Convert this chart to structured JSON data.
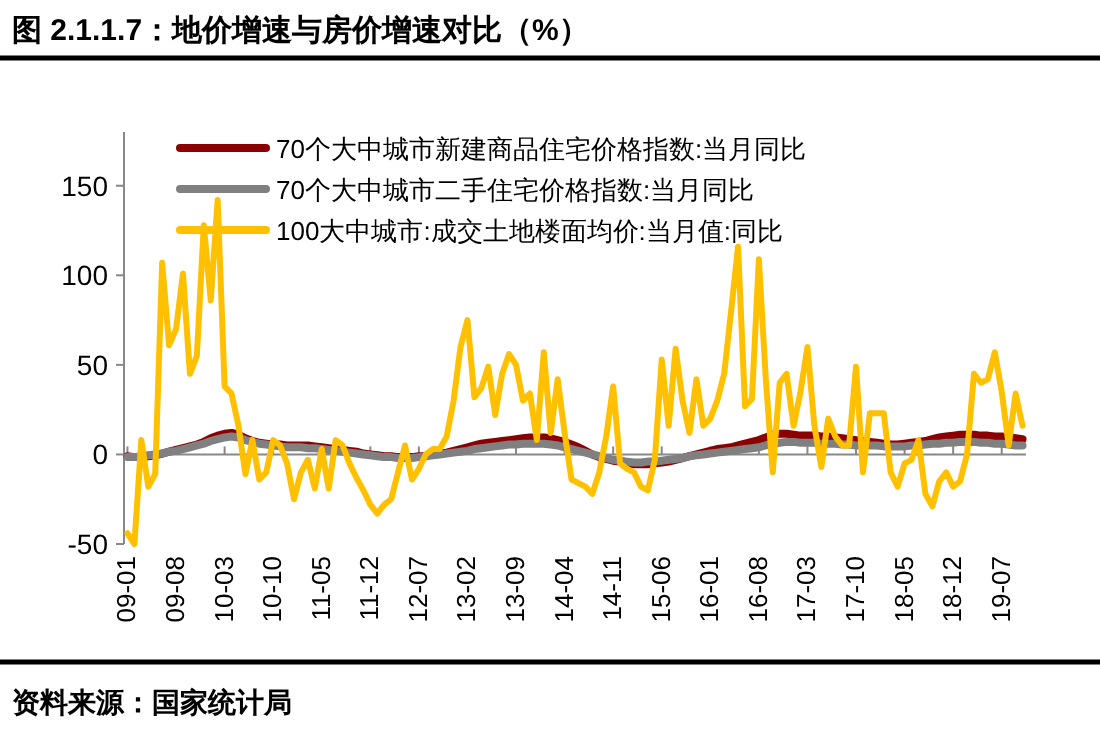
{
  "chart_data": {
    "type": "line",
    "title": "图 2.1.1.7：地价增速与房价增速对比（%）",
    "annotations": [
      "资料来源：国家统计局"
    ],
    "categories": [
      "09-01",
      null,
      null,
      null,
      null,
      null,
      null,
      "09-08",
      null,
      null,
      null,
      null,
      null,
      null,
      "10-03",
      null,
      null,
      null,
      null,
      null,
      null,
      "10-10",
      null,
      null,
      null,
      null,
      null,
      null,
      "11-05",
      null,
      null,
      null,
      null,
      null,
      null,
      "11-12",
      null,
      null,
      null,
      null,
      null,
      null,
      "12-07",
      null,
      null,
      null,
      null,
      null,
      null,
      "13-02",
      null,
      null,
      null,
      null,
      null,
      null,
      "13-09",
      null,
      null,
      null,
      null,
      null,
      null,
      "14-04",
      null,
      null,
      null,
      null,
      null,
      null,
      "14-11",
      null,
      null,
      null,
      null,
      null,
      null,
      "15-06",
      null,
      null,
      null,
      null,
      null,
      null,
      "16-01",
      null,
      null,
      null,
      null,
      null,
      null,
      "16-08",
      null,
      null,
      null,
      null,
      null,
      null,
      "17-03",
      null,
      null,
      null,
      null,
      null,
      null,
      "17-10",
      null,
      null,
      null,
      null,
      null,
      null,
      "18-05",
      null,
      null,
      null,
      null,
      null,
      null,
      "18-12",
      null,
      null,
      null,
      null,
      null,
      null,
      "19-07",
      null,
      null,
      null
    ],
    "series": [
      {
        "name": "70个大中城市新建商品住宅价格指数:当月同比",
        "color": "#8b0000",
        "values": [
          -1,
          -1.5,
          -1.5,
          -1,
          -0.5,
          0.5,
          1.5,
          2.5,
          3.5,
          4.5,
          5.5,
          7,
          9,
          10.5,
          11.5,
          12,
          11,
          9,
          7.5,
          6.5,
          6,
          5.5,
          5.5,
          5,
          5,
          5,
          5,
          4.5,
          4,
          3.5,
          3,
          2.5,
          2,
          1.5,
          0.5,
          0,
          -0.5,
          -1,
          -1,
          -1.5,
          -1.5,
          -1.5,
          -1,
          -1,
          0,
          0.5,
          1,
          2,
          3,
          4,
          5,
          6,
          6.5,
          7,
          7.5,
          8,
          8.5,
          9,
          9.5,
          9.5,
          9.5,
          9,
          8,
          7,
          5.5,
          4,
          2,
          0,
          -1.5,
          -2.5,
          -3.5,
          -4,
          -5,
          -5.5,
          -5.5,
          -5.5,
          -5,
          -4.5,
          -4,
          -3,
          -2,
          -1,
          0,
          1,
          2,
          3,
          3.5,
          4,
          5,
          6,
          7,
          8,
          9.5,
          11,
          11.5,
          11.5,
          11,
          10.5,
          10.5,
          10.5,
          10,
          10,
          9.5,
          9,
          8.5,
          8,
          7.5,
          7,
          6.5,
          6,
          5.5,
          5.5,
          6,
          6.5,
          7,
          7.5,
          8.5,
          9.5,
          10,
          10.5,
          11,
          11,
          11,
          10.5,
          10.5,
          10,
          10,
          9.5,
          9,
          8.5
        ]
      },
      {
        "name": "70个大中城市二手住宅价格指数:当月同比",
        "color": "#808080",
        "values": [
          -1.5,
          -1.5,
          -1,
          -0.5,
          0,
          0.5,
          1.5,
          2,
          3,
          4,
          5,
          6,
          7.5,
          8.5,
          9.5,
          10,
          9.5,
          8,
          7,
          6,
          5.5,
          5,
          4.5,
          4,
          4,
          4,
          3.5,
          3.5,
          3,
          2.5,
          2,
          1.5,
          1,
          0.5,
          0,
          -0.5,
          -1,
          -1.5,
          -1.5,
          -2,
          -2,
          -2,
          -1.5,
          -1,
          -0.5,
          0,
          0.5,
          1,
          1.5,
          2,
          3,
          3.5,
          4,
          4.5,
          5,
          5.5,
          5.5,
          6,
          6,
          6,
          6,
          5.5,
          5,
          4,
          3,
          2,
          1,
          0,
          -1,
          -2,
          -3,
          -3.5,
          -4,
          -4.5,
          -4.5,
          -4,
          -4,
          -3.5,
          -3,
          -2.5,
          -2,
          -1,
          -0.5,
          0,
          0.5,
          1,
          1.5,
          2,
          2.5,
          3,
          3.5,
          4,
          5,
          6,
          6.5,
          7,
          7,
          6.5,
          6.5,
          6.5,
          6,
          6,
          6,
          5.5,
          5.5,
          5,
          5,
          5,
          5,
          4.5,
          4.5,
          4.5,
          4.5,
          5,
          5,
          5.5,
          6,
          6,
          6.5,
          6.5,
          7,
          7,
          7,
          6.5,
          6.5,
          6,
          6,
          5.5,
          5,
          5
        ]
      },
      {
        "name": "100大中城市:成交土地楼面均价:当月值:同比",
        "color": "#ffc000",
        "values": [
          -44,
          -50,
          8,
          -18,
          -11,
          107,
          61,
          70,
          101,
          45,
          55,
          128,
          86,
          142,
          38,
          34,
          16,
          -11,
          8,
          -14,
          -10,
          8,
          5,
          -5,
          -25,
          -10,
          -3,
          -19,
          3,
          -19,
          8,
          5,
          -5,
          -13,
          -20,
          -28,
          -33,
          -28,
          -25,
          -10,
          5,
          -14,
          -8,
          0,
          3,
          3,
          10,
          30,
          60,
          75,
          32,
          37,
          49,
          22,
          45,
          56,
          50,
          30,
          34,
          8,
          57,
          12,
          42,
          12,
          -14,
          -16,
          -18,
          -22,
          -10,
          10,
          38,
          -5,
          -8,
          -10,
          -18,
          -20,
          -3,
          53,
          16,
          59,
          30,
          12,
          42,
          16,
          20,
          30,
          45,
          80,
          116,
          27,
          31,
          109,
          42,
          -10,
          40,
          45,
          16,
          35,
          60,
          16,
          -7,
          20,
          10,
          5,
          5,
          49,
          -10,
          23,
          23,
          23,
          -10,
          -18,
          -5,
          -3,
          8,
          -22,
          -29,
          -15,
          -10,
          -18,
          -15,
          0,
          45,
          40,
          42,
          57,
          35,
          5,
          34,
          16
        ]
      }
    ],
    "ylim": [
      -50,
      180
    ],
    "yticks": [
      -50,
      0,
      50,
      100,
      150
    ],
    "legend": "top left"
  }
}
